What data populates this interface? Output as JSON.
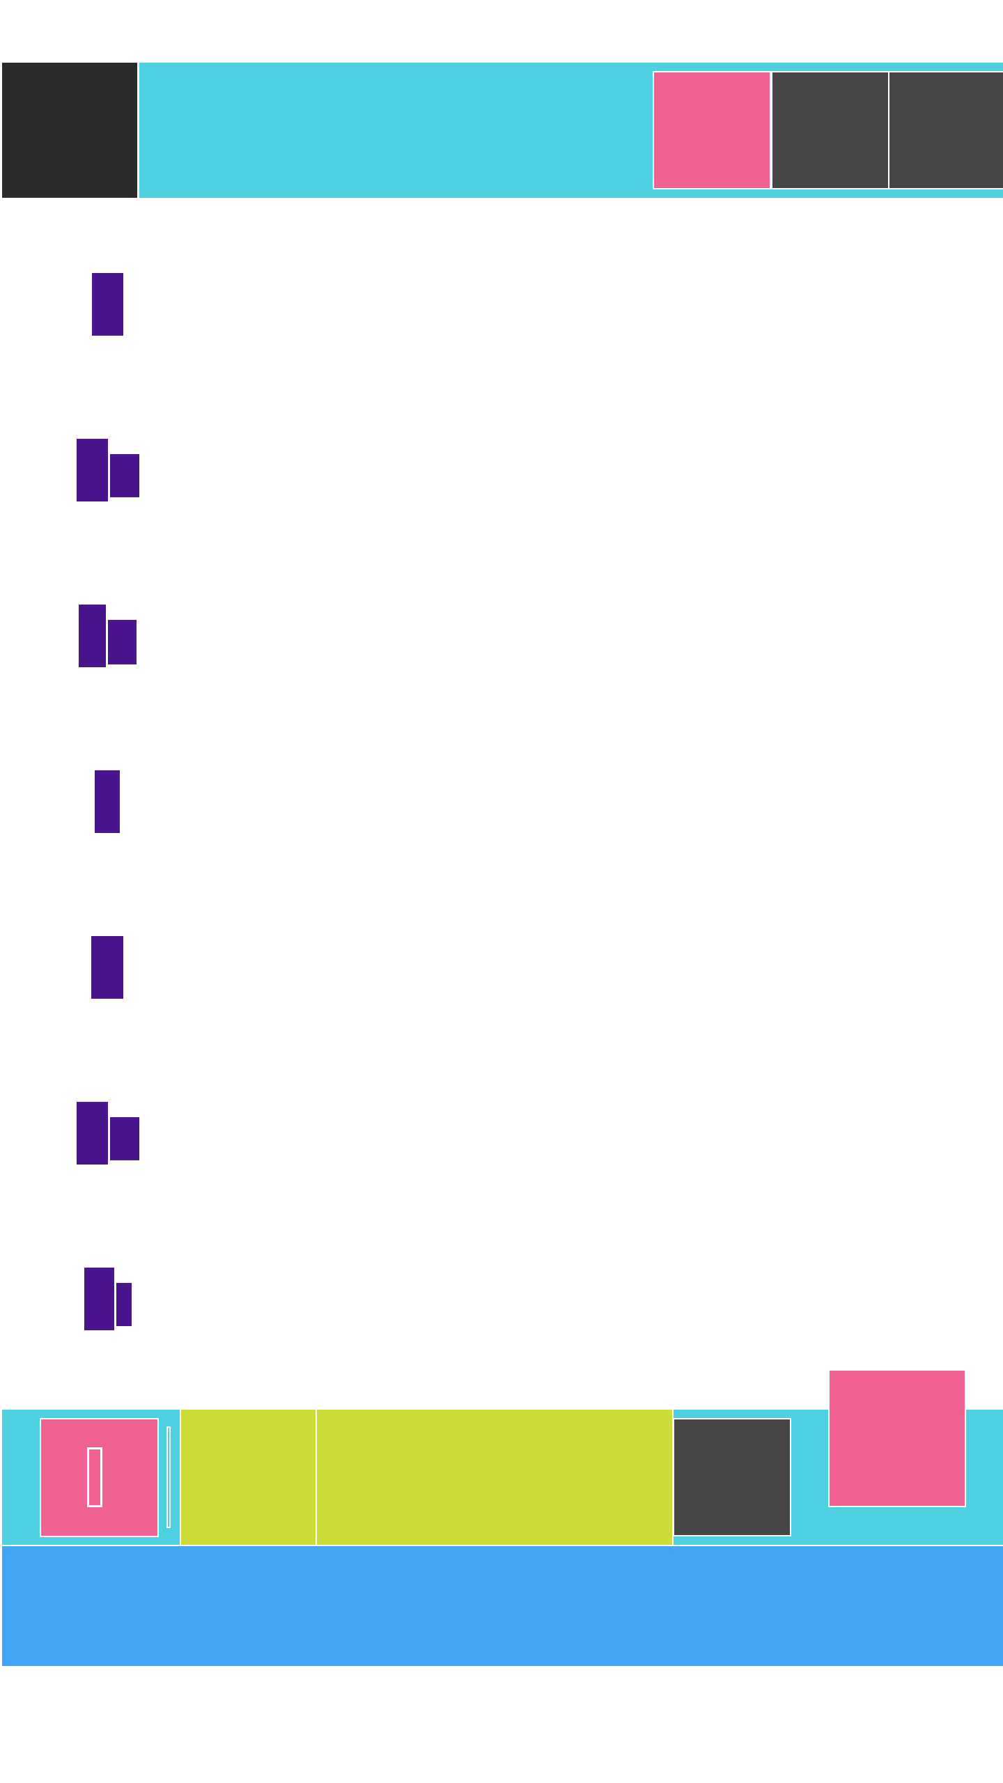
{
  "colors": {
    "page_bg": "#ffffff",
    "app_bar": "#4dd0e2",
    "nav_dark": "#2a2a2a",
    "button_dark": "#464646",
    "accent_pink": "#f06292",
    "glyph_purple": "#4a148c",
    "field_lime": "#cddc39",
    "footer_blue": "#42a5f5",
    "divider": "#ffffff"
  },
  "top_bar": {
    "nav_icon": "menu-block",
    "actions": [
      {
        "icon": "primary-action",
        "color": "#f06292"
      },
      {
        "icon": "secondary-action",
        "color": "#464646"
      },
      {
        "icon": "overflow-action",
        "color": "#464646"
      }
    ]
  },
  "list": {
    "items": [
      {
        "icon": "single-bar-chart-icon",
        "bars": [
          1.0
        ]
      },
      {
        "icon": "double-bar-chart-icon",
        "bars": [
          1.0,
          0.69
        ]
      },
      {
        "icon": "double-bar-chart-icon",
        "bars": [
          1.0,
          0.71
        ]
      },
      {
        "icon": "single-bar-chart-icon",
        "bars": [
          1.0
        ]
      },
      {
        "icon": "single-bar-chart-icon",
        "bars": [
          1.0
        ]
      },
      {
        "icon": "double-bar-chart-icon",
        "bars": [
          1.0,
          0.69
        ]
      },
      {
        "icon": "double-bar-chart-icon",
        "bars": [
          1.0,
          0.69
        ]
      }
    ]
  },
  "bottom_toolbar": {
    "primary_icon": "pink-toggle-icon",
    "field_color_1": "#cddc39",
    "field_color_2": "#cddc39",
    "dark_button_icon": "dark-action-icon",
    "fab_icon": "floating-action-icon"
  },
  "footer": {
    "color": "#42a5f5"
  }
}
